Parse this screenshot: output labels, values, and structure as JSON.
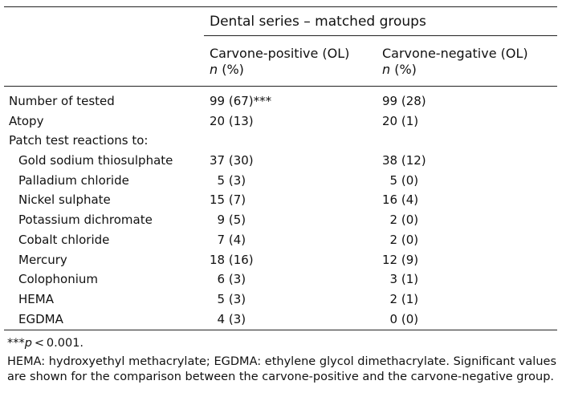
{
  "table": {
    "group_header": "Dental series – matched groups",
    "col1_title": "Carvone-positive (OL)",
    "col2_title": "Carvone-negative (OL)",
    "n_label": "n",
    "pct_label": " (%)",
    "rows": [
      {
        "label": "Number of tested",
        "v1": "99 (67)***",
        "v2": "99 (28)",
        "indent": false
      },
      {
        "label": "Atopy",
        "v1": "20 (13)",
        "v2": "20 (1)",
        "indent": false
      },
      {
        "label": "Patch test reactions to:",
        "v1": "",
        "v2": "",
        "indent": false
      },
      {
        "label": "Gold sodium thiosulphate",
        "v1": "37 (30)",
        "v2": "38 (12)",
        "indent": true
      },
      {
        "label": "Palladium chloride",
        "v1": "  5 (3)",
        "v2": "  5 (0)",
        "indent": true
      },
      {
        "label": "Nickel sulphate",
        "v1": "15 (7)",
        "v2": "16 (4)",
        "indent": true
      },
      {
        "label": "Potassium dichromate",
        "v1": "  9 (5)",
        "v2": "  2 (0)",
        "indent": true
      },
      {
        "label": "Cobalt chloride",
        "v1": "  7 (4)",
        "v2": "  2 (0)",
        "indent": true
      },
      {
        "label": "Mercury",
        "v1": "18 (16)",
        "v2": "12 (9)",
        "indent": true
      },
      {
        "label": "Colophonium",
        "v1": "  6 (3)",
        "v2": "  3 (1)",
        "indent": true
      },
      {
        "label": "HEMA",
        "v1": "  5 (3)",
        "v2": "  2 (1)",
        "indent": true
      },
      {
        "label": "EGDMA",
        "v1": "  4 (3)",
        "v2": "  0 (0)",
        "indent": true
      }
    ]
  },
  "footnotes": {
    "sig_stars": "***",
    "sig_p": "p",
    "sig_rest": " < 0.001.",
    "abbrev": "HEMA: hydroxyethyl methacrylate; EGDMA: ethylene glycol dimethacrylate. Significant values are shown for the comparison between the carvone-positive and the carvone-negative group."
  }
}
